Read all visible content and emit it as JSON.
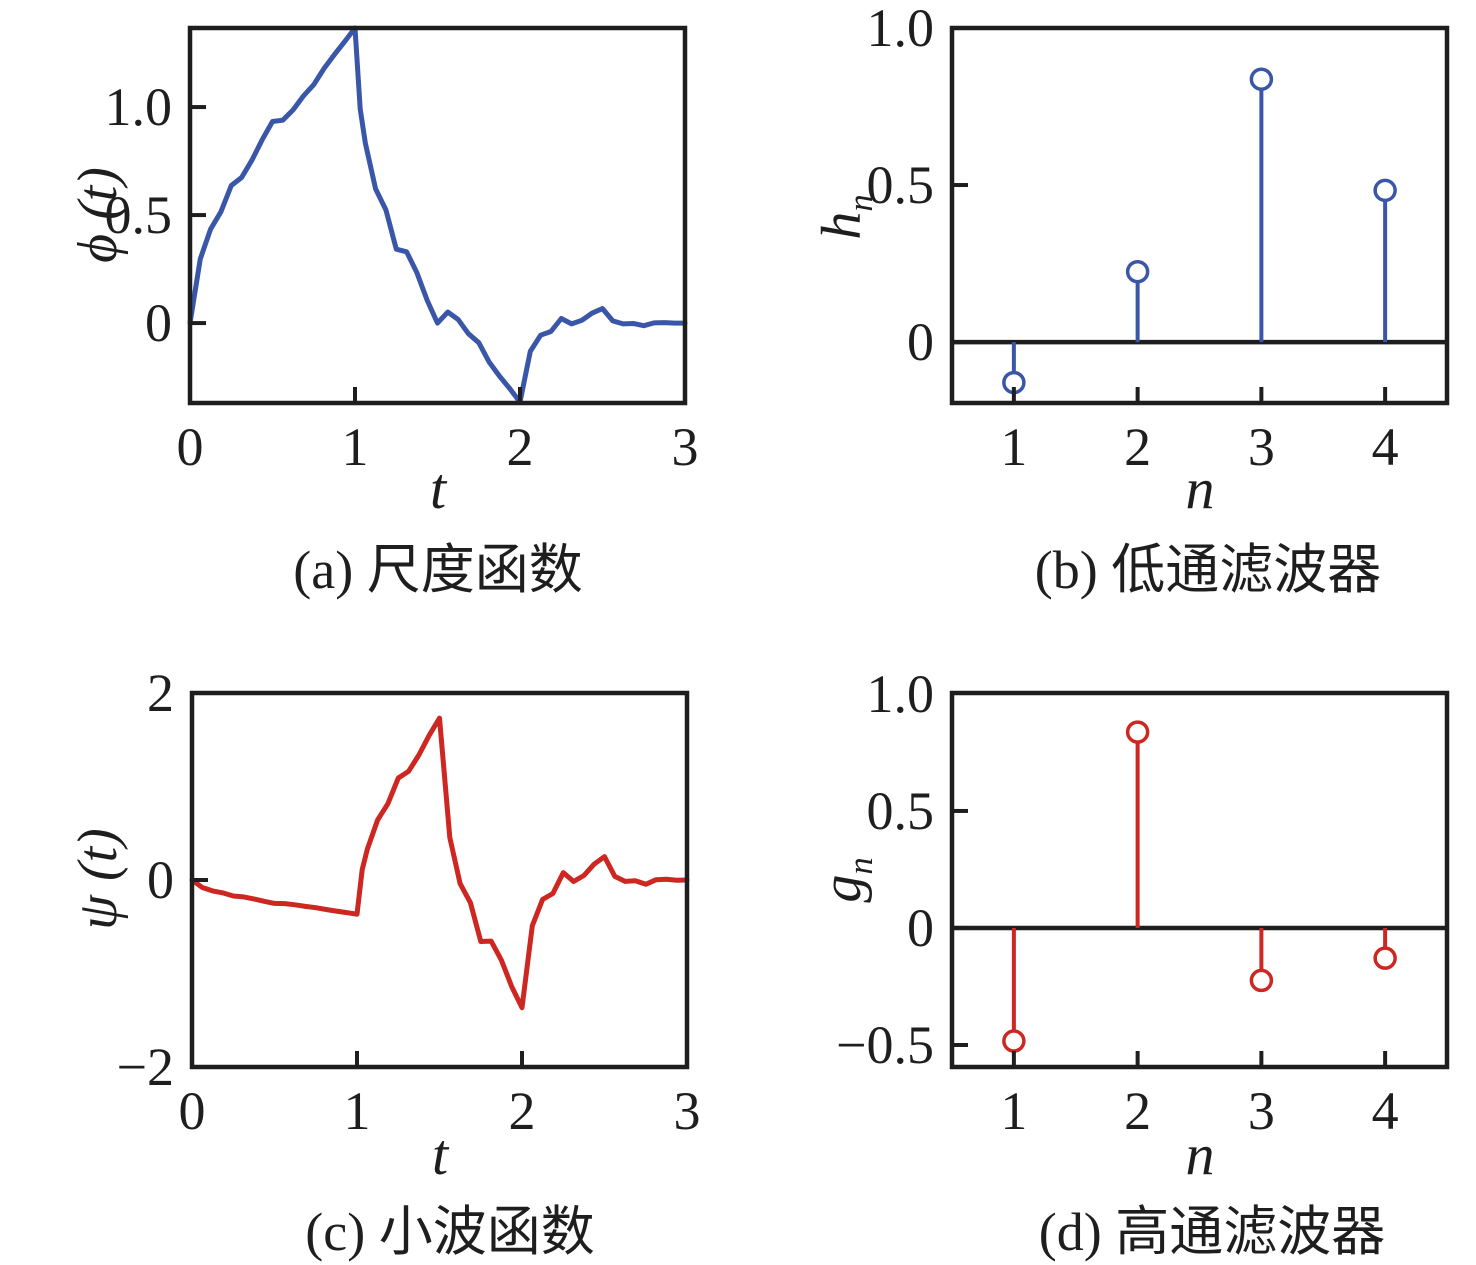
{
  "figure": {
    "background": "#ffffff",
    "axis_color": "#1e1e1e",
    "blue": "#3A56A8",
    "red": "#CE2621"
  },
  "chart_data": [
    {
      "id": "a",
      "type": "line",
      "title": "(a) 尺度函数",
      "xlabel": "t",
      "ylabel_main": "ϕ (t)",
      "ylabel_sub": "",
      "color": "#3A56A8",
      "grid": false,
      "legend": null,
      "xlim": [
        0,
        3
      ],
      "ylim": [
        -0.37,
        1.366
      ],
      "xticks": [
        {
          "v": 0,
          "t": "0"
        },
        {
          "v": 1,
          "t": "1"
        },
        {
          "v": 2,
          "t": "2"
        },
        {
          "v": 3,
          "t": "3"
        }
      ],
      "yticks": [
        {
          "v": 0,
          "t": "0"
        },
        {
          "v": 0.5,
          "t": "0.5"
        },
        {
          "v": 1.0,
          "t": "1.0"
        }
      ],
      "zero_line": false,
      "x": [
        0,
        0.0625,
        0.125,
        0.1875,
        0.25,
        0.3125,
        0.375,
        0.4375,
        0.5,
        0.5625,
        0.625,
        0.6875,
        0.75,
        0.8125,
        0.875,
        0.9375,
        1,
        1.03125,
        1.0625,
        1.125,
        1.1875,
        1.25,
        1.3125,
        1.375,
        1.4375,
        1.5,
        1.5625,
        1.625,
        1.6875,
        1.75,
        1.8125,
        1.875,
        1.9375,
        2,
        2.0625,
        2.125,
        2.1875,
        2.25,
        2.3125,
        2.375,
        2.4375,
        2.5,
        2.5625,
        2.625,
        2.6875,
        2.75,
        2.8125,
        2.875,
        2.9375,
        3
      ],
      "y": [
        0,
        0.297,
        0.435,
        0.515,
        0.637,
        0.674,
        0.754,
        0.849,
        0.933,
        0.939,
        0.987,
        1.051,
        1.104,
        1.179,
        1.243,
        1.303,
        1.366,
        0.991,
        0.834,
        0.621,
        0.524,
        0.342,
        0.33,
        0.233,
        0.105,
        0,
        0.051,
        0.017,
        -0.049,
        -0.091,
        -0.18,
        -0.245,
        -0.303,
        -0.366,
        -0.131,
        -0.056,
        -0.039,
        0.021,
        -0.004,
        0.013,
        0.046,
        0.067,
        0.01,
        -0.004,
        -0.002,
        -0.012,
        0.001,
        0.002,
        0,
        0
      ]
    },
    {
      "id": "b",
      "type": "stem",
      "title": "(b) 低通滤波器",
      "xlabel": "n",
      "ylabel_main": "h",
      "ylabel_sub": "n",
      "color": "#3A56A8",
      "grid": false,
      "legend": null,
      "marker": "open-circle",
      "xlim": [
        0.5,
        4.5
      ],
      "ylim": [
        -0.194,
        1.0
      ],
      "xticks": [
        {
          "v": 1,
          "t": "1"
        },
        {
          "v": 2,
          "t": "2"
        },
        {
          "v": 3,
          "t": "3"
        },
        {
          "v": 4,
          "t": "4"
        }
      ],
      "yticks": [
        {
          "v": 0,
          "t": "0"
        },
        {
          "v": 0.5,
          "t": "0.5"
        },
        {
          "v": 1.0,
          "t": "1.0"
        }
      ],
      "zero_line": true,
      "x": [
        1,
        2,
        3,
        4
      ],
      "y": [
        -0.129,
        0.224,
        0.837,
        0.483
      ]
    },
    {
      "id": "c",
      "type": "line",
      "title": "(c) 小波函数",
      "xlabel": "t",
      "ylabel_main": "ψ (t)",
      "ylabel_sub": "",
      "color": "#CE2621",
      "grid": false,
      "legend": null,
      "xlim": [
        0,
        3
      ],
      "ylim": [
        -2,
        2
      ],
      "xticks": [
        {
          "v": 0,
          "t": "0"
        },
        {
          "v": 1,
          "t": "1"
        },
        {
          "v": 2,
          "t": "2"
        },
        {
          "v": 3,
          "t": "3"
        }
      ],
      "yticks": [
        {
          "v": -2,
          "t": "−2"
        },
        {
          "v": 0,
          "t": "0"
        },
        {
          "v": 2,
          "t": "2"
        }
      ],
      "zero_line": false,
      "x": [
        0,
        0.0625,
        0.125,
        0.1875,
        0.25,
        0.3125,
        0.375,
        0.4375,
        0.5,
        0.5625,
        0.625,
        0.6875,
        0.75,
        0.8125,
        0.875,
        0.9375,
        1,
        1.03125,
        1.0625,
        1.125,
        1.1875,
        1.25,
        1.3125,
        1.375,
        1.4375,
        1.5,
        1.5625,
        1.625,
        1.6875,
        1.75,
        1.8125,
        1.875,
        1.9375,
        2,
        2.0625,
        2.125,
        2.1875,
        2.25,
        2.3125,
        2.375,
        2.4375,
        2.5,
        2.5625,
        2.625,
        2.6875,
        2.75,
        2.8125,
        2.875,
        2.9375,
        3
      ],
      "y": [
        0,
        -0.08,
        -0.117,
        -0.138,
        -0.171,
        -0.181,
        -0.202,
        -0.228,
        -0.25,
        -0.252,
        -0.265,
        -0.282,
        -0.296,
        -0.316,
        -0.333,
        -0.349,
        -0.366,
        0.111,
        0.328,
        0.642,
        0.816,
        1.091,
        1.163,
        1.337,
        1.548,
        1.732,
        0.455,
        -0.038,
        -0.243,
        -0.658,
        -0.653,
        -0.858,
        -1.14,
        -1.366,
        -0.49,
        -0.208,
        -0.144,
        0.079,
        -0.016,
        0.048,
        0.17,
        0.25,
        0.038,
        -0.015,
        -0.009,
        -0.046,
        0.003,
        0.008,
        -0.002,
        0
      ]
    },
    {
      "id": "d",
      "type": "stem",
      "title": "(d) 高通滤波器",
      "xlabel": "n",
      "ylabel_main": "g",
      "ylabel_sub": "n",
      "color": "#CE2621",
      "grid": false,
      "legend": null,
      "marker": "open-circle",
      "xlim": [
        0.5,
        4.5
      ],
      "ylim": [
        -0.594,
        1.004
      ],
      "xticks": [
        {
          "v": 1,
          "t": "1"
        },
        {
          "v": 2,
          "t": "2"
        },
        {
          "v": 3,
          "t": "3"
        },
        {
          "v": 4,
          "t": "4"
        }
      ],
      "yticks": [
        {
          "v": -0.5,
          "t": "−0.5"
        },
        {
          "v": 0,
          "t": "0"
        },
        {
          "v": 0.5,
          "t": "0.5"
        },
        {
          "v": 1.0,
          "t": "1.0"
        }
      ],
      "zero_line": true,
      "x": [
        1,
        2,
        3,
        4
      ],
      "y": [
        -0.483,
        0.837,
        -0.224,
        -0.129
      ]
    }
  ]
}
